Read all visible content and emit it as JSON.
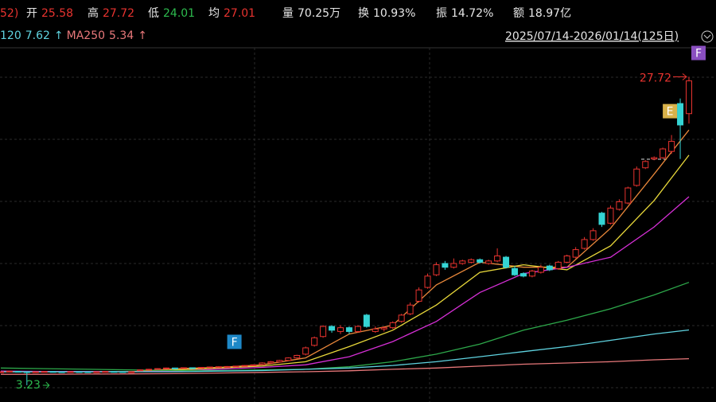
{
  "quote": {
    "prefix": "52)",
    "prefix_color": "#e8332f",
    "items": [
      {
        "label": "开",
        "value": 25.58,
        "color": "#e8332f"
      },
      {
        "label": "高",
        "value": 27.72,
        "color": "#e8332f"
      },
      {
        "label": "低",
        "value": 24.01,
        "color": "#2dbb4e"
      },
      {
        "label": "均",
        "value": 27.01,
        "color": "#e8332f"
      },
      {
        "label": "量",
        "value": 70.25,
        "value_label": "70.25万",
        "color": "#e6e6e6"
      },
      {
        "label": "换",
        "value": 10.93,
        "value_label": "10.93%",
        "color": "#e6e6e6"
      },
      {
        "label": "振",
        "value": 14.72,
        "value_label": "14.72%",
        "color": "#e6e6e6"
      },
      {
        "label": "额",
        "value": 18.97,
        "value_label": "18.97亿",
        "color": "#e6e6e6"
      }
    ]
  },
  "chart_data": {
    "type": "candlestick",
    "date_range": "2025/07/14-2026/01/14(125日)",
    "up_color": "#e8332f",
    "down_color": "#35d4d4",
    "ylim": [
      1.9,
      31.8
    ],
    "open": [
      4.28,
      4.3,
      4.33,
      4.3,
      4.29,
      4.3,
      4.32,
      4.3,
      4.29,
      4.31,
      4.3,
      4.28,
      4.3,
      4.32,
      4.31,
      4.29,
      4.38,
      4.44,
      4.5,
      4.54,
      4.6,
      4.57,
      4.62,
      4.6,
      4.65,
      4.67,
      4.7,
      4.72,
      4.74,
      4.8,
      4.88,
      5.0,
      5.08,
      5.2,
      5.4,
      5.7,
      6.4,
      7.1,
      7.9,
      7.5,
      7.8,
      7.5,
      8.8,
      7.5,
      7.7,
      7.8,
      8.3,
      8.9,
      9.9,
      11.0,
      12.0,
      12.9,
      12.6,
      12.9,
      13.0,
      13.2,
      12.9,
      13.1,
      13.4,
      12.5,
      12.1,
      11.9,
      12.2,
      12.7,
      12.5,
      13.0,
      13.4,
      14.1,
      14.8,
      16.9,
      16.1,
      17.2,
      17.7,
      19.1,
      20.5,
      21.2,
      21.3,
      21.8,
      25.6,
      24.8
    ],
    "close": [
      4.3,
      4.35,
      4.3,
      4.28,
      4.3,
      4.32,
      4.3,
      4.29,
      4.31,
      4.3,
      4.28,
      4.3,
      4.32,
      4.31,
      4.3,
      4.3,
      4.45,
      4.5,
      4.55,
      4.6,
      4.58,
      4.62,
      4.6,
      4.65,
      4.68,
      4.7,
      4.72,
      4.75,
      4.8,
      4.85,
      5.0,
      5.1,
      5.2,
      5.4,
      5.6,
      6.2,
      7.0,
      7.9,
      7.6,
      7.8,
      7.5,
      7.9,
      7.9,
      7.7,
      7.8,
      8.2,
      8.8,
      9.6,
      10.8,
      11.9,
      12.8,
      12.6,
      12.9,
      13.1,
      13.2,
      13.0,
      13.1,
      13.5,
      12.6,
      12.0,
      11.9,
      12.3,
      12.6,
      12.4,
      13.0,
      13.5,
      14.0,
      14.8,
      15.5,
      16.0,
      17.3,
      17.8,
      18.9,
      20.4,
      21.0,
      21.3,
      22.0,
      22.6,
      23.9,
      27.4
    ],
    "high": [
      4.32,
      4.37,
      4.35,
      4.32,
      4.32,
      4.34,
      4.34,
      4.32,
      4.33,
      4.33,
      4.32,
      4.32,
      4.34,
      4.34,
      4.33,
      4.32,
      4.48,
      4.53,
      4.58,
      4.63,
      4.62,
      4.65,
      4.64,
      4.68,
      4.7,
      4.73,
      4.75,
      4.78,
      4.83,
      4.88,
      5.05,
      5.15,
      5.25,
      5.45,
      5.65,
      6.3,
      7.1,
      8.0,
      8.0,
      8.0,
      7.9,
      8.0,
      8.9,
      7.9,
      7.9,
      8.3,
      8.9,
      9.8,
      11.0,
      12.1,
      13.0,
      13.1,
      13.3,
      13.2,
      13.3,
      13.3,
      13.2,
      14.1,
      13.5,
      12.7,
      12.2,
      12.4,
      12.8,
      12.8,
      13.1,
      13.6,
      14.2,
      15.0,
      15.7,
      17.0,
      17.5,
      18.0,
      19.0,
      20.6,
      21.1,
      21.4,
      22.1,
      23.1,
      26.0,
      27.72
    ],
    "low": [
      4.26,
      4.28,
      4.28,
      3.23,
      4.27,
      4.28,
      4.28,
      4.27,
      4.27,
      4.28,
      4.26,
      4.26,
      4.28,
      4.29,
      4.28,
      4.27,
      4.35,
      4.42,
      4.48,
      4.52,
      4.55,
      4.55,
      4.58,
      4.58,
      4.62,
      4.65,
      4.68,
      4.7,
      4.72,
      4.78,
      4.85,
      4.95,
      5.05,
      5.15,
      5.35,
      5.6,
      6.3,
      7.0,
      7.4,
      7.3,
      7.3,
      7.4,
      7.8,
      7.4,
      7.5,
      7.7,
      8.2,
      8.8,
      9.8,
      10.9,
      11.9,
      12.4,
      12.5,
      12.8,
      12.9,
      12.9,
      12.8,
      13.0,
      12.5,
      11.9,
      11.8,
      11.8,
      12.1,
      12.3,
      12.4,
      12.9,
      13.3,
      14.0,
      14.7,
      15.8,
      16.0,
      17.1,
      17.6,
      19.0,
      20.4,
      21.1,
      21.2,
      21.6,
      21.2,
      24.01
    ],
    "ma_x": [
      0,
      5,
      10,
      15,
      20,
      25,
      30,
      35,
      40,
      45,
      50,
      55,
      60,
      65,
      70,
      75,
      79
    ],
    "ma": [
      {
        "color": "#e8873a",
        "values": [
          4.3,
          4.3,
          4.3,
          4.3,
          4.55,
          4.65,
          4.85,
          5.4,
          7.3,
          8.0,
          11.2,
          13.0,
          12.6,
          12.6,
          15.7,
          20.0,
          23.5
        ]
      },
      {
        "color": "#e8d83a",
        "values": [
          4.3,
          4.3,
          4.3,
          4.3,
          4.45,
          4.6,
          4.75,
          5.1,
          6.3,
          7.6,
          9.6,
          12.2,
          12.8,
          12.4,
          14.3,
          17.9,
          21.5
        ]
      },
      {
        "color": "#d62fd6",
        "values": [
          4.35,
          4.33,
          4.32,
          4.3,
          4.35,
          4.5,
          4.65,
          4.85,
          5.5,
          6.7,
          8.3,
          10.6,
          12.1,
          12.6,
          13.4,
          15.8,
          18.2
        ]
      },
      {
        "color": "#2da84a",
        "values": [
          4.6,
          4.55,
          4.5,
          4.45,
          4.4,
          4.4,
          4.45,
          4.5,
          4.7,
          5.1,
          5.7,
          6.5,
          7.6,
          8.4,
          9.3,
          10.4,
          11.4
        ]
      },
      {
        "name": "120",
        "last": 7.62,
        "arrow": "↑",
        "color": "#5fd3e0",
        "values": [
          4.3,
          4.3,
          4.3,
          4.3,
          4.3,
          4.35,
          4.4,
          4.5,
          4.6,
          4.8,
          5.1,
          5.5,
          5.9,
          6.3,
          6.8,
          7.3,
          7.62
        ]
      },
      {
        "name": "MA250",
        "last": 5.34,
        "arrow": "↑",
        "color": "#e8787a",
        "values": [
          4.1,
          4.1,
          4.12,
          4.13,
          4.15,
          4.2,
          4.25,
          4.3,
          4.38,
          4.5,
          4.6,
          4.75,
          4.9,
          5.0,
          5.1,
          5.25,
          5.34
        ]
      }
    ],
    "max_label": {
      "value": 27.72,
      "index": 79,
      "color": "#e8332f"
    },
    "min_label": {
      "value": 3.23,
      "index": 3,
      "color": "#2dbb4e"
    },
    "flags": [
      {
        "text": "F",
        "index": 27,
        "color": "#1e88c7"
      },
      {
        "text": "E",
        "index": 77,
        "color": "#d9b24a"
      },
      {
        "text": "F",
        "index": 79,
        "color": "#8a4fc0"
      }
    ]
  }
}
